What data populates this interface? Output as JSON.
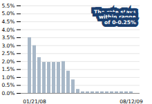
{
  "chart_data": {
    "type": "bar",
    "categories": [
      null,
      "01/21/08",
      null,
      null,
      null,
      null,
      null,
      null,
      null,
      null,
      null,
      null,
      null,
      null,
      null,
      null,
      null,
      null,
      null,
      null,
      null,
      "08/12/09"
    ],
    "values": [
      3.5,
      3.0,
      2.25,
      1.95,
      1.95,
      1.95,
      1.95,
      2.0,
      1.4,
      0.85,
      0.25,
      0.1,
      0.1,
      0.1,
      0.1,
      0.1,
      0.1,
      0.1,
      0.1,
      0.1,
      0.1,
      0.1
    ],
    "color": "#a8b8c8",
    "ylim": [
      0,
      5.5
    ],
    "yticks": [
      {
        "value": 0.0,
        "label": "0.0%"
      },
      {
        "value": 0.5,
        "label": "0.5%"
      },
      {
        "value": 1.0,
        "label": "1.0%"
      },
      {
        "value": 1.5,
        "label": "1.5%"
      },
      {
        "value": 2.0,
        "label": "2.0%"
      },
      {
        "value": 2.5,
        "label": "2.5%"
      },
      {
        "value": 3.0,
        "label": "3.0%"
      },
      {
        "value": 3.5,
        "label": "3.5%"
      },
      {
        "value": 4.0,
        "label": "4.0%"
      },
      {
        "value": 4.5,
        "label": "4.5%"
      },
      {
        "value": 5.0,
        "label": "5.0%"
      },
      {
        "value": 5.5,
        "label": "5.5%"
      }
    ],
    "grid": true,
    "annotation": "The rate stays\nwithin range\nof 0-0.25%"
  }
}
